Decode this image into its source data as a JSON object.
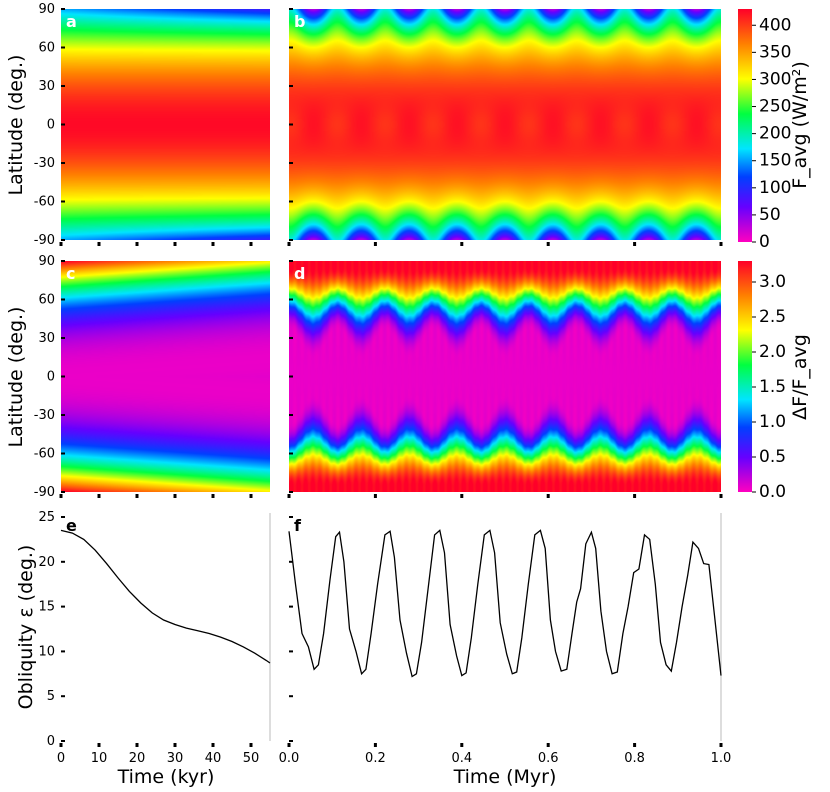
{
  "figure": {
    "ylabel_latitude": "Latitude (deg.)",
    "ylabel_obliquity": "Obliquity ε (deg.)",
    "xlabel_kyr": "Time (kyr)",
    "xlabel_myr": "Time (Myr)",
    "colorbar_top_label": "F_avg (W/m²)",
    "colorbar_bottom_label": "ΔF/F_avg"
  },
  "chart_data": [
    {
      "id": "a",
      "type": "heatmap",
      "panel_label": "a",
      "quantity": "F_avg (W/m2)",
      "xlabel": "",
      "ylabel": "Latitude (deg.)",
      "xlim": [
        0,
        55
      ],
      "ylim": [
        -90,
        90
      ],
      "yticks": [
        -90,
        -60,
        -30,
        0,
        30,
        60,
        90
      ],
      "colormap": "gist_rainbow",
      "clim": [
        0,
        430
      ]
    },
    {
      "id": "b",
      "type": "heatmap",
      "panel_label": "b",
      "quantity": "F_avg (W/m2)",
      "xlabel": "",
      "ylabel": "",
      "xlim": [
        0,
        1
      ],
      "ylim": [
        -90,
        90
      ],
      "periods": 9,
      "colormap": "gist_rainbow",
      "clim": [
        0,
        430
      ],
      "colorbar": {
        "label": "F_avg (W/m²)",
        "ticks": [
          0,
          50,
          100,
          150,
          200,
          250,
          300,
          350,
          400
        ]
      }
    },
    {
      "id": "c",
      "type": "heatmap",
      "panel_label": "c",
      "quantity": "ΔF/F_avg",
      "xlabel": "",
      "ylabel": "Latitude (deg.)",
      "xlim": [
        0,
        55
      ],
      "ylim": [
        -90,
        90
      ],
      "yticks": [
        -90,
        -60,
        -30,
        0,
        30,
        60,
        90
      ],
      "colormap": "gist_rainbow",
      "clim": [
        0,
        3.3
      ]
    },
    {
      "id": "d",
      "type": "heatmap",
      "panel_label": "d",
      "quantity": "ΔF/F_avg",
      "xlabel": "",
      "ylabel": "",
      "xlim": [
        0,
        1
      ],
      "ylim": [
        -90,
        90
      ],
      "periods": 9,
      "colormap": "gist_rainbow",
      "clim": [
        0,
        3.3
      ],
      "colorbar": {
        "label": "ΔF/F_avg",
        "ticks": [
          0.0,
          0.5,
          1.0,
          1.5,
          2.0,
          2.5,
          3.0
        ]
      }
    },
    {
      "id": "e",
      "type": "line",
      "panel_label": "e",
      "xlabel": "Time (kyr)",
      "ylabel": "Obliquity ε (deg.)",
      "xlim": [
        0,
        55
      ],
      "ylim": [
        0,
        25
      ],
      "xticks": [
        0,
        10,
        20,
        30,
        40,
        50
      ],
      "yticks": [
        0,
        5,
        10,
        15,
        20,
        25
      ],
      "x": [
        0,
        3,
        6,
        9,
        12,
        15,
        18,
        21,
        24,
        27,
        30,
        33,
        36,
        39,
        42,
        45,
        48,
        51,
        54,
        55
      ],
      "y": [
        23.5,
        23.2,
        22.5,
        21.3,
        19.8,
        18.2,
        16.7,
        15.4,
        14.3,
        13.5,
        13.0,
        12.6,
        12.3,
        12.0,
        11.6,
        11.1,
        10.5,
        9.8,
        9.0,
        8.7
      ]
    },
    {
      "id": "f",
      "type": "line",
      "panel_label": "f",
      "xlabel": "Time (Myr)",
      "ylabel": "",
      "xlim": [
        0,
        1
      ],
      "ylim": [
        0,
        25
      ],
      "xticks": [
        0.0,
        0.2,
        0.4,
        0.6,
        0.8,
        1.0
      ],
      "xtick_labels": [
        "0.0",
        "0.2",
        "0.4",
        "0.6",
        "0.8",
        "1.0"
      ],
      "x": [
        0.0,
        0.015,
        0.03,
        0.045,
        0.058,
        0.068,
        0.08,
        0.095,
        0.108,
        0.117,
        0.127,
        0.14,
        0.155,
        0.168,
        0.178,
        0.19,
        0.205,
        0.222,
        0.234,
        0.244,
        0.257,
        0.272,
        0.285,
        0.295,
        0.307,
        0.322,
        0.337,
        0.349,
        0.36,
        0.373,
        0.388,
        0.4,
        0.41,
        0.422,
        0.437,
        0.452,
        0.465,
        0.476,
        0.489,
        0.504,
        0.517,
        0.527,
        0.539,
        0.554,
        0.569,
        0.582,
        0.593,
        0.605,
        0.617,
        0.63,
        0.643,
        0.655,
        0.666,
        0.675,
        0.687,
        0.7,
        0.71,
        0.722,
        0.735,
        0.748,
        0.76,
        0.773,
        0.785,
        0.798,
        0.81,
        0.823,
        0.835,
        0.848,
        0.86,
        0.873,
        0.885,
        0.897,
        0.91,
        0.923,
        0.935,
        0.948,
        0.96,
        0.972,
        0.985,
        1.0
      ],
      "y": [
        23.4,
        17.5,
        12.0,
        10.5,
        8.0,
        8.5,
        12.0,
        18.0,
        22.8,
        23.3,
        20.0,
        12.5,
        10.0,
        7.5,
        8.0,
        12.0,
        17.5,
        23.0,
        23.4,
        20.5,
        13.5,
        9.8,
        7.2,
        7.5,
        11.0,
        17.0,
        23.0,
        23.5,
        21.0,
        13.0,
        9.5,
        7.3,
        7.6,
        11.5,
        17.5,
        23.0,
        23.5,
        21.0,
        13.2,
        9.7,
        7.5,
        7.7,
        11.5,
        17.5,
        23.0,
        23.5,
        21.5,
        13.5,
        10.0,
        7.8,
        8.0,
        12.0,
        15.5,
        17.0,
        22.0,
        23.3,
        21.5,
        14.5,
        10.0,
        7.5,
        7.7,
        12.0,
        15.0,
        18.8,
        19.2,
        23.0,
        22.5,
        17.5,
        11.0,
        8.5,
        7.8,
        11.0,
        15.0,
        18.5,
        22.2,
        21.5,
        19.8,
        19.7,
        14.0,
        7.3
      ]
    }
  ]
}
